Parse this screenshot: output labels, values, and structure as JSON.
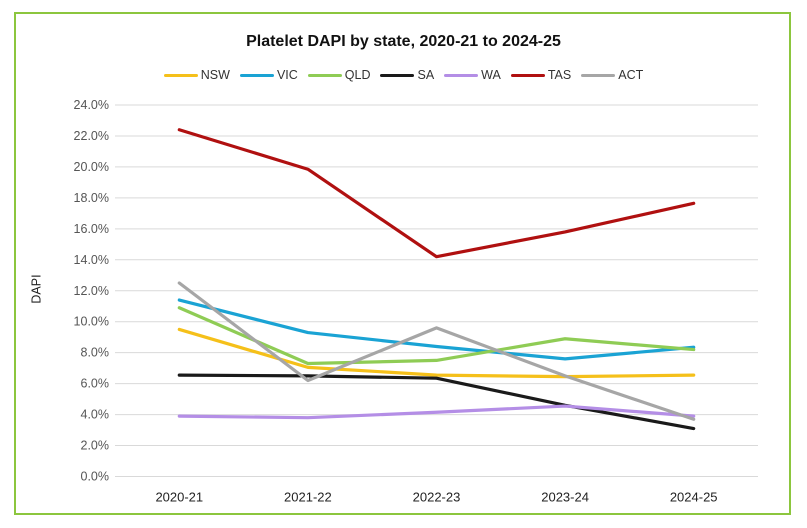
{
  "chart_data": {
    "type": "line",
    "title": "Platelet DAPI by state, 2020-21 to 2024-25",
    "xlabel": "",
    "ylabel": "DAPI",
    "categories": [
      "2020-21",
      "2021-22",
      "2022-23",
      "2023-24",
      "2024-25"
    ],
    "ylim": [
      0,
      24
    ],
    "yticks": [
      "0.0%",
      "2.0%",
      "4.0%",
      "6.0%",
      "8.0%",
      "10.0%",
      "12.0%",
      "14.0%",
      "16.0%",
      "18.0%",
      "20.0%",
      "22.0%",
      "24.0%"
    ],
    "grid": true,
    "legend_position": "top",
    "series": [
      {
        "name": "NSW",
        "color": "#f5c01a",
        "values": [
          9.5,
          7.05,
          6.55,
          6.45,
          6.55
        ]
      },
      {
        "name": "VIC",
        "color": "#1aa3d4",
        "values": [
          11.4,
          9.3,
          8.4,
          7.6,
          8.35
        ]
      },
      {
        "name": "QLD",
        "color": "#8fcc55",
        "values": [
          10.9,
          7.3,
          7.5,
          8.9,
          8.2
        ]
      },
      {
        "name": "SA",
        "color": "#1a1a1a",
        "values": [
          6.55,
          6.5,
          6.35,
          4.6,
          3.1
        ]
      },
      {
        "name": "WA",
        "color": "#b48ee6",
        "values": [
          3.9,
          3.8,
          4.15,
          4.55,
          3.9
        ]
      },
      {
        "name": "TAS",
        "color": "#b01010",
        "values": [
          22.4,
          19.85,
          14.2,
          15.8,
          17.65
        ]
      },
      {
        "name": "ACT",
        "color": "#a6a6a6",
        "values": [
          12.5,
          6.2,
          9.6,
          6.5,
          3.7
        ]
      }
    ]
  }
}
